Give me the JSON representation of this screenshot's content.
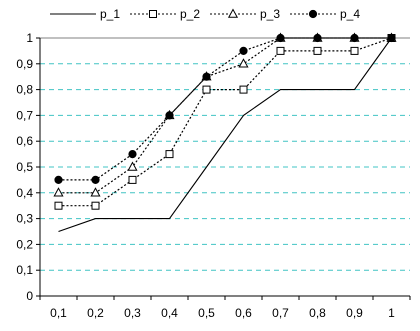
{
  "chart_data": {
    "type": "line",
    "title": "",
    "xlabel": "",
    "ylabel": "",
    "x_ticks": [
      "0,1",
      "0,2",
      "0,3",
      "0,4",
      "0,5",
      "0,6",
      "0,7",
      "0,8",
      "0,9",
      "1"
    ],
    "y_ticks": [
      "0",
      "0,1",
      "0,2",
      "0,3",
      "0,4",
      "0,5",
      "0,6",
      "0,7",
      "0,8",
      "0,9",
      "1"
    ],
    "xlim": [
      0.1,
      1.0
    ],
    "ylim": [
      0,
      1
    ],
    "grid": "horizontal dashed",
    "legend_position": "top",
    "colors": {
      "grid": "#40c4c4",
      "series": "#000000"
    },
    "series": [
      {
        "name": "p_1",
        "marker": "none",
        "line": "solid",
        "x": [
          0.1,
          0.2,
          0.3,
          0.4,
          0.5,
          0.6,
          0.7,
          0.8,
          0.9,
          1.0
        ],
        "y": [
          0.25,
          0.3,
          0.3,
          0.3,
          0.5,
          0.7,
          0.8,
          0.8,
          0.8,
          1.0
        ]
      },
      {
        "name": "p_2",
        "marker": "square-open",
        "line": "dotted",
        "x": [
          0.1,
          0.2,
          0.3,
          0.4,
          0.5,
          0.6,
          0.7,
          0.8,
          0.9,
          1.0
        ],
        "y": [
          0.35,
          0.35,
          0.45,
          0.55,
          0.8,
          0.8,
          0.95,
          0.95,
          0.95,
          1.0
        ]
      },
      {
        "name": "p_3",
        "marker": "triangle-open",
        "line": "dotted",
        "x": [
          0.1,
          0.2,
          0.3,
          0.4,
          0.5,
          0.6,
          0.7,
          0.8,
          0.9,
          1.0
        ],
        "y": [
          0.4,
          0.4,
          0.5,
          0.7,
          0.85,
          0.9,
          1.0,
          1.0,
          1.0,
          1.0
        ]
      },
      {
        "name": "p_4",
        "marker": "circle-filled",
        "line": "dotted",
        "x": [
          0.1,
          0.2,
          0.3,
          0.4,
          0.5,
          0.6,
          0.7,
          0.8,
          0.9,
          1.0
        ],
        "y": [
          0.45,
          0.45,
          0.55,
          0.7,
          0.85,
          0.95,
          1.0,
          1.0,
          1.0,
          1.0
        ]
      }
    ]
  }
}
